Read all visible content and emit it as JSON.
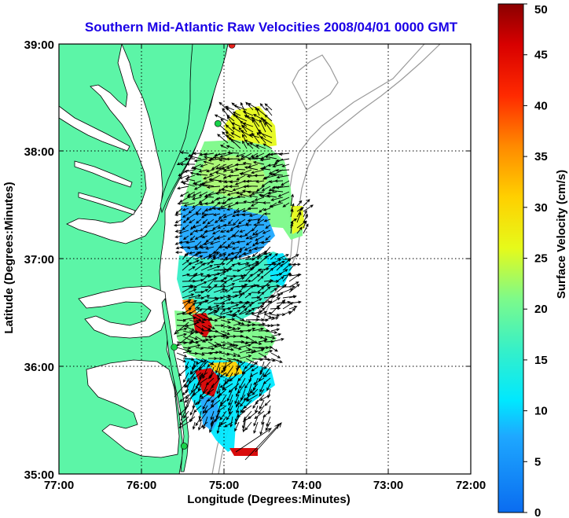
{
  "title": "Southern Mid-Atlantic Raw Velocities 2008/04/01 0000 GMT",
  "xlabel": "Longitude (Degrees:Minutes)",
  "ylabel": "Latitude (Degrees:Minutes)",
  "colorbar": {
    "label": "Surface Velocity (cm/s)",
    "min": 0,
    "max": 50,
    "ticks": [
      "0",
      "5",
      "10",
      "15",
      "20",
      "25",
      "30",
      "35",
      "40",
      "45",
      "50"
    ]
  },
  "map": {
    "lon_ticks": [
      "77:00",
      "76:00",
      "75:00",
      "74:00",
      "73:00",
      "72:00"
    ],
    "lat_ticks": [
      "39:00",
      "38:00",
      "37:00",
      "36:00",
      "35:00"
    ],
    "lon_range": [
      -77,
      -72
    ],
    "lat_range": [
      35,
      39
    ],
    "grid": "dotted",
    "colors": {
      "land": "#5cf5a7",
      "water": "#ffffff",
      "coastline": "#000000",
      "bathymetry": "#9a9a9a",
      "station_green": "#19d24a",
      "station_red": "#e8211b",
      "title": "#1a00e6"
    },
    "stations": [
      {
        "lon": -74.9,
        "lat": 38.99,
        "status": "red"
      },
      {
        "lon": -75.07,
        "lat": 38.26,
        "status": "green"
      },
      {
        "lon": -75.6,
        "lat": 36.18,
        "status": "green"
      },
      {
        "lon": -75.48,
        "lat": 35.26,
        "status": "green"
      }
    ]
  }
}
